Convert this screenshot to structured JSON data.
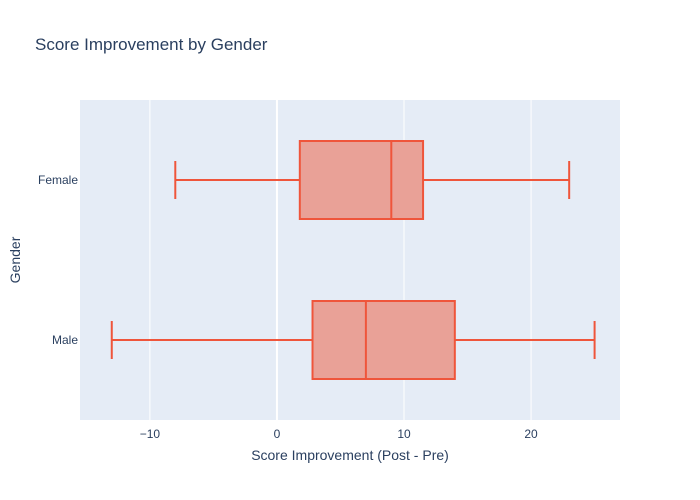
{
  "chart_data": {
    "type": "box",
    "orientation": "horizontal",
    "title": "Score Improvement by Gender",
    "xlabel": "Score Improvement (Post - Pre)",
    "ylabel": "Gender",
    "xlim": [
      -15.5,
      27.0
    ],
    "x_ticks": [
      -10,
      0,
      10,
      20
    ],
    "x_tick_labels": [
      "−10",
      "0",
      "10",
      "20"
    ],
    "grid": true,
    "colors": {
      "box_fill": "#e9a197",
      "box_line": "#ef553b",
      "plot_bg": "#e5ecf6",
      "grid": "#ffffff",
      "text": "#2a3f5f"
    },
    "categories": [
      "Female",
      "Male"
    ],
    "boxes": [
      {
        "category": "Female",
        "min": -8,
        "q1": 1.8,
        "median": 9,
        "q3": 11.5,
        "max": 23
      },
      {
        "category": "Male",
        "min": -13,
        "q1": 2.8,
        "median": 7,
        "q3": 14,
        "max": 25
      }
    ]
  }
}
